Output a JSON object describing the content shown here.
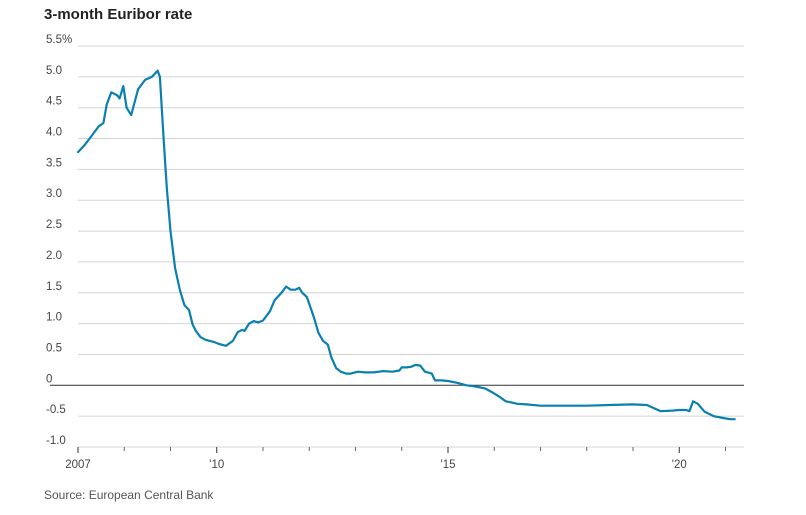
{
  "chart_data": {
    "type": "line",
    "title": "3-month Euribor rate",
    "source": "Source: European Central Bank",
    "xlabel": "",
    "ylabel": "",
    "ylim": [
      -1.0,
      5.5
    ],
    "xlim": [
      2007.0,
      2021.4
    ],
    "y_ticks": [
      {
        "value": 5.5,
        "label": "5.5%"
      },
      {
        "value": 5.0,
        "label": "5.0"
      },
      {
        "value": 4.5,
        "label": "4.5"
      },
      {
        "value": 4.0,
        "label": "4.0"
      },
      {
        "value": 3.5,
        "label": "3.5"
      },
      {
        "value": 3.0,
        "label": "3.0"
      },
      {
        "value": 2.5,
        "label": "2.5"
      },
      {
        "value": 2.0,
        "label": "2.0"
      },
      {
        "value": 1.5,
        "label": "1.5"
      },
      {
        "value": 1.0,
        "label": "1.0"
      },
      {
        "value": 0.5,
        "label": "0.5"
      },
      {
        "value": 0.0,
        "label": "0"
      },
      {
        "value": -0.5,
        "label": "-0.5"
      },
      {
        "value": -1.0,
        "label": "-1.0"
      }
    ],
    "x_ticks": [
      {
        "value": 2007,
        "label": "2007"
      },
      {
        "value": 2010,
        "label": "'10"
      },
      {
        "value": 2015,
        "label": "'15"
      },
      {
        "value": 2020,
        "label": "'20"
      }
    ],
    "grid": true,
    "line_color": "#0a7fb0",
    "series": [
      {
        "name": "",
        "points": [
          [
            2007.0,
            3.78
          ],
          [
            2007.15,
            3.9
          ],
          [
            2007.3,
            4.05
          ],
          [
            2007.45,
            4.2
          ],
          [
            2007.55,
            4.25
          ],
          [
            2007.62,
            4.55
          ],
          [
            2007.72,
            4.75
          ],
          [
            2007.85,
            4.7
          ],
          [
            2007.9,
            4.65
          ],
          [
            2007.98,
            4.85
          ],
          [
            2008.05,
            4.5
          ],
          [
            2008.15,
            4.38
          ],
          [
            2008.3,
            4.8
          ],
          [
            2008.45,
            4.95
          ],
          [
            2008.6,
            5.0
          ],
          [
            2008.72,
            5.1
          ],
          [
            2008.77,
            5.0
          ],
          [
            2008.85,
            4.0
          ],
          [
            2008.92,
            3.2
          ],
          [
            2009.0,
            2.5
          ],
          [
            2009.1,
            1.9
          ],
          [
            2009.2,
            1.55
          ],
          [
            2009.3,
            1.3
          ],
          [
            2009.4,
            1.22
          ],
          [
            2009.48,
            0.98
          ],
          [
            2009.55,
            0.88
          ],
          [
            2009.65,
            0.78
          ],
          [
            2009.75,
            0.74
          ],
          [
            2009.85,
            0.72
          ],
          [
            2009.95,
            0.7
          ],
          [
            2010.05,
            0.67
          ],
          [
            2010.2,
            0.64
          ],
          [
            2010.35,
            0.72
          ],
          [
            2010.45,
            0.86
          ],
          [
            2010.55,
            0.9
          ],
          [
            2010.6,
            0.88
          ],
          [
            2010.7,
            1.0
          ],
          [
            2010.8,
            1.04
          ],
          [
            2010.9,
            1.02
          ],
          [
            2011.0,
            1.05
          ],
          [
            2011.15,
            1.2
          ],
          [
            2011.25,
            1.38
          ],
          [
            2011.4,
            1.5
          ],
          [
            2011.5,
            1.6
          ],
          [
            2011.6,
            1.55
          ],
          [
            2011.7,
            1.55
          ],
          [
            2011.78,
            1.58
          ],
          [
            2011.85,
            1.5
          ],
          [
            2011.95,
            1.43
          ],
          [
            2012.1,
            1.1
          ],
          [
            2012.2,
            0.85
          ],
          [
            2012.3,
            0.72
          ],
          [
            2012.4,
            0.66
          ],
          [
            2012.48,
            0.45
          ],
          [
            2012.58,
            0.28
          ],
          [
            2012.68,
            0.22
          ],
          [
            2012.8,
            0.19
          ],
          [
            2012.9,
            0.19
          ],
          [
            2013.05,
            0.22
          ],
          [
            2013.2,
            0.21
          ],
          [
            2013.4,
            0.21
          ],
          [
            2013.6,
            0.23
          ],
          [
            2013.8,
            0.22
          ],
          [
            2013.95,
            0.24
          ],
          [
            2014.0,
            0.29
          ],
          [
            2014.1,
            0.29
          ],
          [
            2014.2,
            0.3
          ],
          [
            2014.3,
            0.33
          ],
          [
            2014.4,
            0.32
          ],
          [
            2014.5,
            0.22
          ],
          [
            2014.65,
            0.19
          ],
          [
            2014.72,
            0.08
          ],
          [
            2014.85,
            0.08
          ],
          [
            2015.0,
            0.07
          ],
          [
            2015.2,
            0.04
          ],
          [
            2015.4,
            0.0
          ],
          [
            2015.6,
            -0.02
          ],
          [
            2015.8,
            -0.05
          ],
          [
            2015.95,
            -0.11
          ],
          [
            2016.1,
            -0.18
          ],
          [
            2016.25,
            -0.26
          ],
          [
            2016.5,
            -0.3
          ],
          [
            2016.7,
            -0.31
          ],
          [
            2017.0,
            -0.33
          ],
          [
            2017.5,
            -0.33
          ],
          [
            2018.0,
            -0.33
          ],
          [
            2018.5,
            -0.32
          ],
          [
            2019.0,
            -0.31
          ],
          [
            2019.3,
            -0.32
          ],
          [
            2019.45,
            -0.37
          ],
          [
            2019.6,
            -0.42
          ],
          [
            2019.85,
            -0.41
          ],
          [
            2020.0,
            -0.4
          ],
          [
            2020.15,
            -0.4
          ],
          [
            2020.22,
            -0.42
          ],
          [
            2020.3,
            -0.26
          ],
          [
            2020.4,
            -0.3
          ],
          [
            2020.55,
            -0.43
          ],
          [
            2020.75,
            -0.5
          ],
          [
            2020.95,
            -0.53
          ],
          [
            2021.1,
            -0.55
          ],
          [
            2021.2,
            -0.55
          ]
        ]
      }
    ]
  }
}
